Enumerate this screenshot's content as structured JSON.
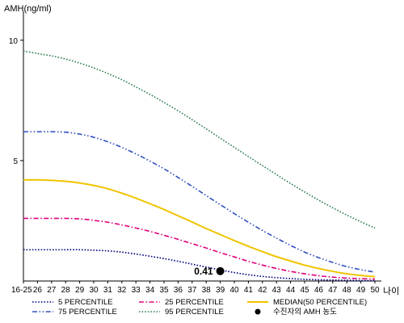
{
  "chart_data": {
    "type": "line",
    "title": "",
    "ylabel": "AMH(ng/ml)",
    "xlabel": "나이",
    "ylim": [
      0,
      11
    ],
    "yticks": [
      5,
      10
    ],
    "categories": [
      "16-25",
      "26",
      "27",
      "28",
      "29",
      "30",
      "31",
      "32",
      "33",
      "34",
      "35",
      "36",
      "37",
      "38",
      "39",
      "40",
      "41",
      "42",
      "43",
      "44",
      "45",
      "46",
      "47",
      "48",
      "49",
      "50"
    ],
    "grid": false,
    "legend_position": "bottom",
    "series": [
      {
        "name": "5 PERCENTILE",
        "color": "#000080",
        "style": "dotted",
        "values": [
          1.3,
          1.3,
          1.3,
          1.3,
          1.3,
          1.28,
          1.25,
          1.2,
          1.12,
          1.03,
          0.93,
          0.82,
          0.7,
          0.58,
          0.46,
          0.35,
          0.26,
          0.19,
          0.14,
          0.1,
          0.07,
          0.05,
          0.04,
          0.03,
          0.02,
          0.02
        ]
      },
      {
        "name": "25 PERCENTILE",
        "color": "#e0007a",
        "style": "dashdot",
        "values": [
          2.6,
          2.6,
          2.6,
          2.6,
          2.58,
          2.52,
          2.44,
          2.33,
          2.2,
          2.06,
          1.9,
          1.73,
          1.55,
          1.37,
          1.18,
          1.0,
          0.82,
          0.66,
          0.52,
          0.4,
          0.3,
          0.22,
          0.16,
          0.12,
          0.1,
          0.08
        ]
      },
      {
        "name": "MEDIAN(50 PERCENTILE)",
        "color": "#f0c400",
        "style": "solid",
        "values": [
          4.2,
          4.2,
          4.18,
          4.14,
          4.07,
          3.97,
          3.83,
          3.65,
          3.44,
          3.21,
          2.97,
          2.71,
          2.45,
          2.18,
          1.93,
          1.68,
          1.44,
          1.22,
          1.01,
          0.83,
          0.66,
          0.52,
          0.4,
          0.3,
          0.23,
          0.18
        ]
      },
      {
        "name": "75 PERCENTILE",
        "color": "#3050c0",
        "style": "dashdotdot",
        "values": [
          6.2,
          6.2,
          6.2,
          6.18,
          6.1,
          5.97,
          5.78,
          5.55,
          5.28,
          4.98,
          4.66,
          4.3,
          3.93,
          3.55,
          3.17,
          2.8,
          2.44,
          2.1,
          1.78,
          1.48,
          1.2,
          0.97,
          0.77,
          0.6,
          0.47,
          0.37
        ]
      },
      {
        "name": "95 PERCENTILE",
        "color": "#2e7d4f",
        "style": "dotted",
        "values": [
          9.55,
          9.45,
          9.35,
          9.22,
          9.05,
          8.85,
          8.62,
          8.36,
          8.06,
          7.75,
          7.42,
          7.07,
          6.7,
          6.32,
          5.93,
          5.55,
          5.17,
          4.79,
          4.42,
          4.05,
          3.7,
          3.36,
          3.04,
          2.74,
          2.46,
          2.2
        ]
      }
    ],
    "highlight_point": {
      "name": "수진자의 AMH 농도",
      "x": "39",
      "y": 0.41,
      "label": "0.41",
      "color": "#000000"
    }
  }
}
